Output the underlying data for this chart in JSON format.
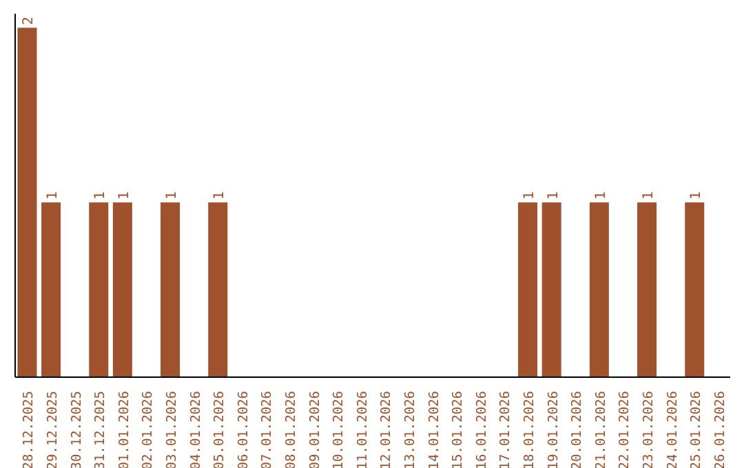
{
  "chart_data": {
    "type": "bar",
    "categories": [
      "28.12.2025",
      "29.12.2025",
      "30.12.2025",
      "31.12.2025",
      "01.01.2026",
      "02.01.2026",
      "03.01.2026",
      "04.01.2026",
      "05.01.2026",
      "06.01.2026",
      "07.01.2026",
      "08.01.2026",
      "09.01.2026",
      "10.01.2026",
      "11.01.2026",
      "12.01.2026",
      "13.01.2026",
      "14.01.2026",
      "15.01.2026",
      "16.01.2026",
      "17.01.2026",
      "18.01.2026",
      "19.01.2026",
      "20.01.2026",
      "21.01.2026",
      "22.01.2026",
      "23.01.2026",
      "24.01.2026",
      "25.01.2026",
      "26.01.2026"
    ],
    "values": [
      2,
      1,
      0,
      1,
      1,
      0,
      1,
      0,
      1,
      0,
      0,
      0,
      0,
      0,
      0,
      0,
      0,
      0,
      0,
      0,
      0,
      1,
      1,
      0,
      1,
      0,
      1,
      0,
      1,
      0
    ],
    "value_labels": [
      "2",
      "1",
      null,
      "1",
      "1",
      null,
      "1",
      null,
      "1",
      null,
      null,
      null,
      null,
      null,
      null,
      null,
      null,
      null,
      null,
      null,
      null,
      "1",
      "1",
      null,
      "1",
      null,
      "1",
      null,
      "1",
      null
    ],
    "color": "#a0522d",
    "grid": false,
    "legend": false
  }
}
